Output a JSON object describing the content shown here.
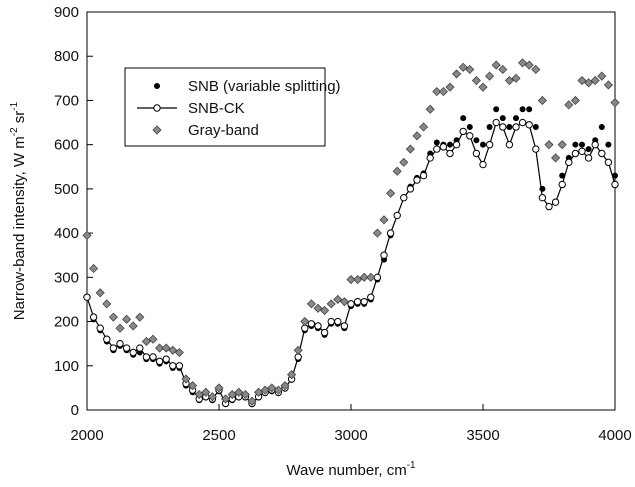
{
  "chart_data": {
    "type": "scatter",
    "xlabel_parts": [
      "Wave number, cm",
      "-1"
    ],
    "ylabel_parts": [
      "Narrow-band intensity, W m",
      "-2",
      " sr",
      "-1"
    ],
    "x": [
      2000,
      2025,
      2050,
      2075,
      2100,
      2125,
      2150,
      2175,
      2200,
      2225,
      2250,
      2275,
      2300,
      2325,
      2350,
      2375,
      2400,
      2425,
      2450,
      2475,
      2500,
      2525,
      2550,
      2575,
      2600,
      2625,
      2650,
      2675,
      2700,
      2725,
      2750,
      2775,
      2800,
      2825,
      2850,
      2875,
      2900,
      2925,
      2950,
      2975,
      3000,
      3025,
      3050,
      3075,
      3100,
      3125,
      3150,
      3175,
      3200,
      3225,
      3250,
      3275,
      3300,
      3325,
      3350,
      3375,
      3400,
      3425,
      3450,
      3475,
      3500,
      3525,
      3550,
      3575,
      3600,
      3625,
      3650,
      3675,
      3700,
      3725,
      3750,
      3775,
      3800,
      3825,
      3850,
      3875,
      3900,
      3925,
      3950,
      3975,
      4000
    ],
    "series": [
      {
        "name": "SNB (variable splitting)",
        "style": "dot",
        "color": "#000000",
        "values": [
          255,
          205,
          180,
          155,
          135,
          145,
          135,
          125,
          130,
          115,
          115,
          105,
          110,
          95,
          95,
          55,
          40,
          22,
          28,
          22,
          42,
          13,
          22,
          28,
          28,
          13,
          28,
          38,
          42,
          38,
          48,
          68,
          115,
          180,
          190,
          185,
          170,
          195,
          195,
          185,
          235,
          240,
          240,
          250,
          295,
          340,
          395,
          440,
          480,
          505,
          525,
          535,
          580,
          605,
          600,
          600,
          610,
          660,
          640,
          610,
          600,
          640,
          680,
          660,
          640,
          660,
          680,
          680,
          640,
          500,
          460,
          470,
          530,
          570,
          600,
          600,
          590,
          610,
          640,
          600,
          530
        ]
      },
      {
        "name": "SNB-CK",
        "style": "line-circle",
        "color": "#000000",
        "values": [
          255,
          210,
          185,
          160,
          140,
          150,
          140,
          130,
          140,
          120,
          120,
          110,
          115,
          100,
          100,
          60,
          45,
          25,
          30,
          25,
          45,
          15,
          25,
          30,
          30,
          15,
          30,
          40,
          45,
          40,
          50,
          70,
          120,
          185,
          195,
          190,
          175,
          200,
          200,
          190,
          240,
          245,
          245,
          255,
          300,
          350,
          400,
          440,
          480,
          500,
          520,
          530,
          570,
          590,
          595,
          580,
          600,
          630,
          620,
          580,
          555,
          600,
          650,
          640,
          600,
          640,
          650,
          645,
          590,
          480,
          460,
          470,
          510,
          560,
          580,
          585,
          570,
          600,
          580,
          560,
          510
        ]
      },
      {
        "name": "Gray-band",
        "style": "diamond",
        "color": "#888888",
        "values": [
          395,
          320,
          265,
          240,
          210,
          185,
          205,
          190,
          210,
          155,
          160,
          140,
          140,
          135,
          130,
          70,
          55,
          35,
          40,
          30,
          50,
          25,
          35,
          40,
          35,
          20,
          40,
          45,
          50,
          45,
          55,
          80,
          135,
          200,
          240,
          230,
          225,
          240,
          250,
          245,
          295,
          295,
          300,
          300,
          400,
          430,
          490,
          540,
          560,
          590,
          620,
          640,
          680,
          720,
          720,
          730,
          760,
          775,
          770,
          745,
          730,
          755,
          780,
          770,
          745,
          750,
          785,
          780,
          770,
          700,
          600,
          570,
          600,
          690,
          700,
          745,
          740,
          745,
          755,
          735,
          695
        ]
      }
    ],
    "xlim": [
      2000,
      4000
    ],
    "xticks": [
      2000,
      2500,
      3000,
      3500,
      4000
    ],
    "ylim": [
      0,
      900
    ],
    "yticks": [
      0,
      100,
      200,
      300,
      400,
      500,
      600,
      700,
      800,
      900
    ]
  }
}
